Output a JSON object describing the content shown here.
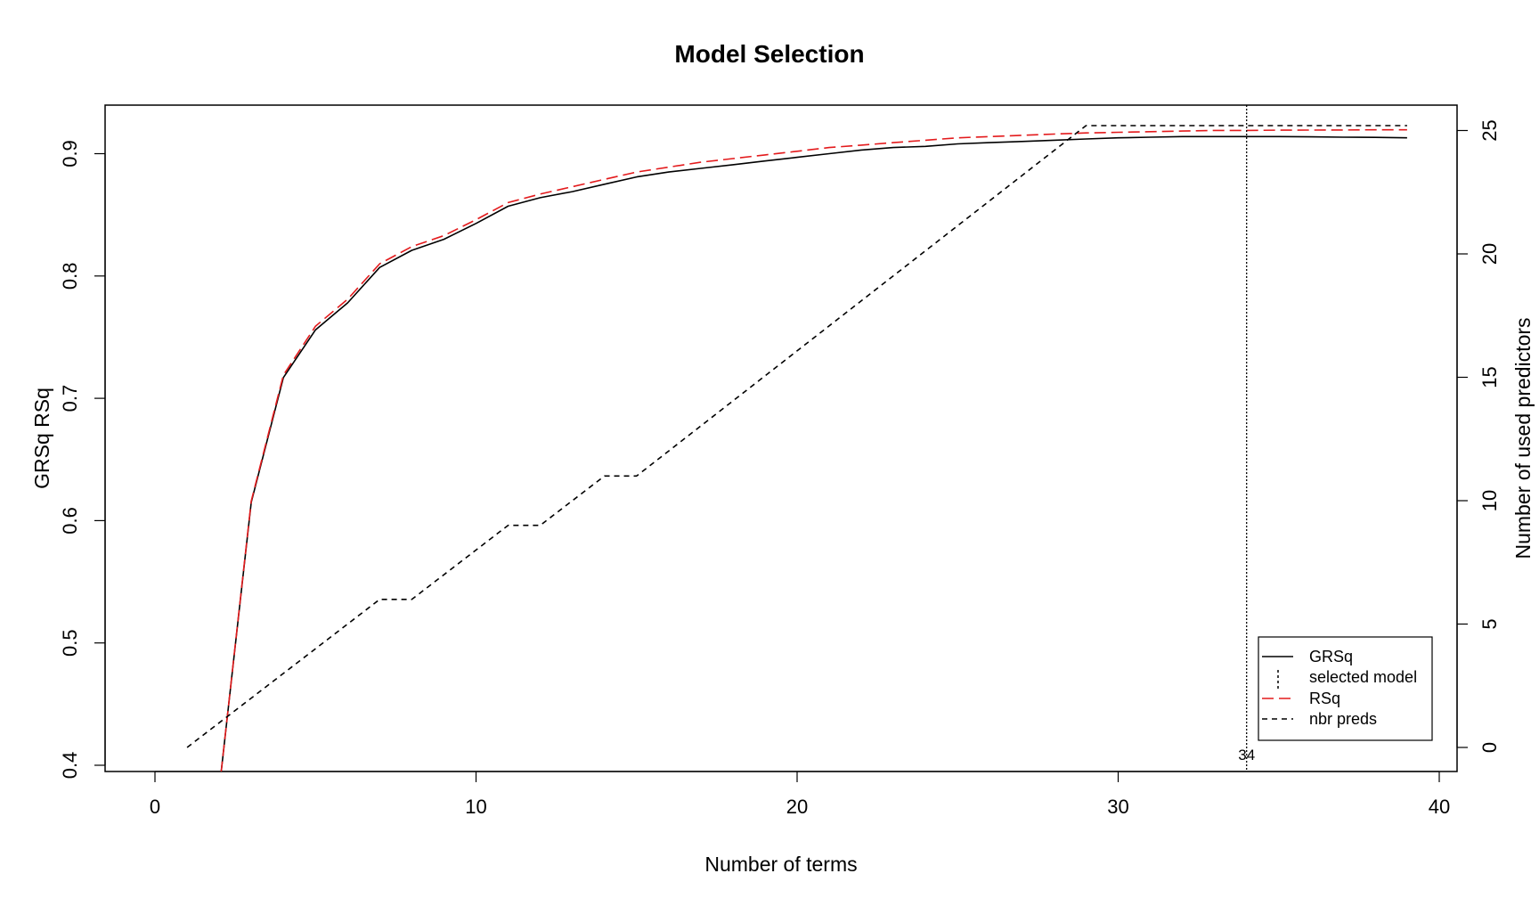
{
  "chart_data": {
    "type": "line",
    "title": "Model Selection",
    "xlabel": "Number of terms",
    "ylabel_left_a": "GRSq",
    "ylabel_left_b": "RSq",
    "ylabel_right": "Number of used predictors",
    "xlim": [
      0,
      40
    ],
    "ylim_left": [
      0.4,
      0.93
    ],
    "ylim_right": [
      -1,
      26
    ],
    "x_ticks": [
      "0",
      "10",
      "20",
      "30",
      "40"
    ],
    "y_left_ticks": [
      "0.4",
      "0.5",
      "0.6",
      "0.7",
      "0.8",
      "0.9"
    ],
    "y_right_ticks": [
      "0",
      "5",
      "10",
      "15",
      "20",
      "25"
    ],
    "grid": false,
    "legend_position": "bottom-right",
    "series": [
      {
        "name": "GRSq",
        "color": "#000000",
        "dash": "solid",
        "axis": "left",
        "x": [
          2,
          3,
          4,
          5,
          6,
          7,
          8,
          9,
          10,
          11,
          12,
          13,
          14,
          15,
          16,
          17,
          18,
          19,
          20,
          21,
          22,
          23,
          24,
          25,
          26,
          27,
          28,
          29,
          30,
          31,
          32,
          33,
          34,
          35,
          36,
          37,
          38,
          39
        ],
        "values": [
          0.38,
          0.615,
          0.717,
          0.756,
          0.778,
          0.807,
          0.821,
          0.83,
          0.843,
          0.857,
          0.864,
          0.869,
          0.875,
          0.881,
          0.885,
          0.888,
          0.891,
          0.894,
          0.897,
          0.9,
          0.903,
          0.905,
          0.906,
          0.908,
          0.909,
          0.91,
          0.911,
          0.912,
          0.913,
          0.9135,
          0.914,
          0.914,
          0.914,
          0.914,
          0.9138,
          0.9135,
          0.9133,
          0.913
        ]
      },
      {
        "name": "RSq",
        "color": "#e31a1c",
        "dash": "long",
        "axis": "left",
        "x": [
          2,
          3,
          4,
          5,
          6,
          7,
          8,
          9,
          10,
          11,
          12,
          13,
          14,
          15,
          16,
          17,
          18,
          19,
          20,
          21,
          22,
          23,
          24,
          25,
          26,
          27,
          28,
          29,
          30,
          31,
          32,
          33,
          34,
          35,
          36,
          37,
          38,
          39
        ],
        "values": [
          0.38,
          0.616,
          0.719,
          0.759,
          0.781,
          0.81,
          0.824,
          0.833,
          0.846,
          0.86,
          0.867,
          0.873,
          0.879,
          0.885,
          0.889,
          0.893,
          0.896,
          0.899,
          0.902,
          0.905,
          0.907,
          0.909,
          0.911,
          0.913,
          0.914,
          0.915,
          0.916,
          0.917,
          0.9175,
          0.918,
          0.9185,
          0.919,
          0.919,
          0.9192,
          0.9193,
          0.9194,
          0.9195,
          0.9195
        ]
      },
      {
        "name": "nbr preds",
        "color": "#000000",
        "dash": "short",
        "axis": "right",
        "x": [
          1,
          7,
          8,
          11,
          12,
          14,
          15,
          29,
          39
        ],
        "values": [
          0,
          6,
          6,
          9,
          9,
          11,
          11,
          25.2,
          25.2
        ]
      }
    ],
    "selected_model": {
      "name": "selected model",
      "x": 34,
      "label": "34"
    }
  }
}
